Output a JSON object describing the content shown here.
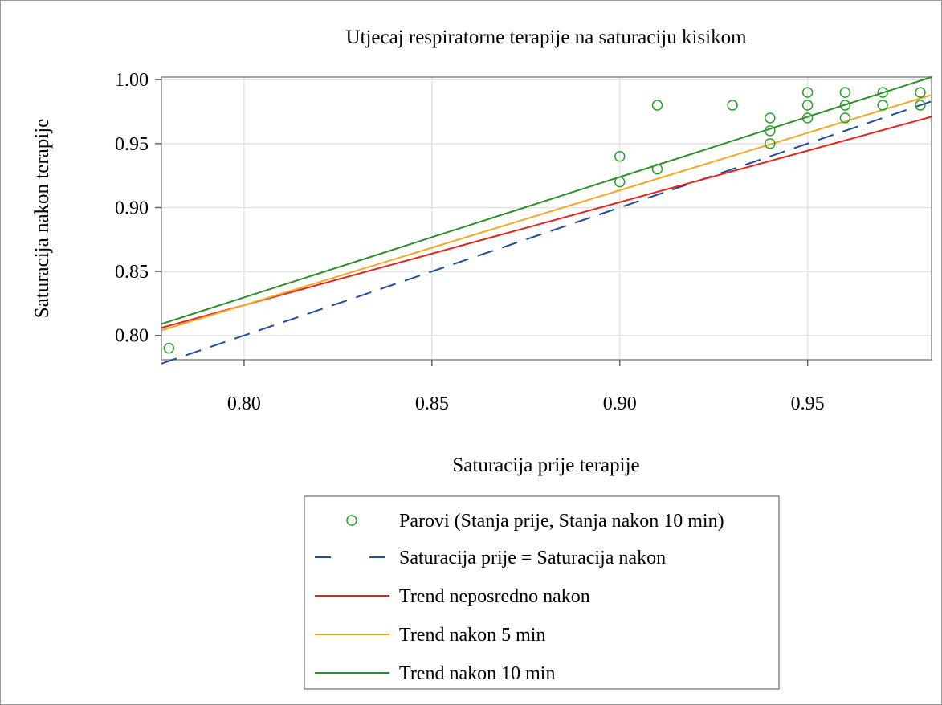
{
  "chart_data": {
    "type": "scatter",
    "title": "Utjecaj respiratorne terapije na saturaciju kisikom",
    "xlabel": "Saturacija prije terapije",
    "ylabel": "Saturacija nakon terapije",
    "xlim": [
      0.778,
      0.983
    ],
    "ylim": [
      0.781,
      1.002
    ],
    "xticks": [
      0.8,
      0.85,
      0.9,
      0.95
    ],
    "yticks": [
      0.8,
      0.85,
      0.9,
      0.95,
      1.0
    ],
    "xtick_labels": [
      "0.80",
      "0.85",
      "0.90",
      "0.95"
    ],
    "ytick_labels": [
      "0.80",
      "0.85",
      "0.90",
      "0.95",
      "1.00"
    ],
    "grid": true,
    "legend_position": "bottom",
    "scatter": {
      "name": "Parovi (Stanja prije,  Stanja nakon 10 min)",
      "color": "#2e9e2e",
      "points": [
        [
          0.78,
          0.79
        ],
        [
          0.9,
          0.94
        ],
        [
          0.9,
          0.92
        ],
        [
          0.91,
          0.98
        ],
        [
          0.91,
          0.93
        ],
        [
          0.93,
          0.98
        ],
        [
          0.94,
          0.97
        ],
        [
          0.94,
          0.96
        ],
        [
          0.94,
          0.95
        ],
        [
          0.95,
          0.99
        ],
        [
          0.95,
          0.98
        ],
        [
          0.95,
          0.97
        ],
        [
          0.96,
          0.99
        ],
        [
          0.96,
          0.98
        ],
        [
          0.96,
          0.97
        ],
        [
          0.97,
          0.99
        ],
        [
          0.97,
          0.98
        ],
        [
          0.98,
          0.99
        ],
        [
          0.98,
          0.98
        ]
      ]
    },
    "lines": [
      {
        "name": "Saturacija prije = Saturacija nakon",
        "color": "#1f4e9e",
        "dashed": true,
        "points": [
          [
            0.778,
            0.778
          ],
          [
            0.983,
            0.983
          ]
        ]
      },
      {
        "name": "Trend neposredno nakon",
        "color": "#e8231c",
        "dashed": false,
        "points": [
          [
            0.778,
            0.806
          ],
          [
            0.983,
            0.971
          ]
        ]
      },
      {
        "name": "Trend nakon 5 min",
        "color": "#f5a623",
        "dashed": false,
        "points": [
          [
            0.778,
            0.804
          ],
          [
            0.983,
            0.988
          ]
        ]
      },
      {
        "name": "Trend nakon 10 min",
        "color": "#2a8f2a",
        "dashed": false,
        "points": [
          [
            0.778,
            0.809
          ],
          [
            0.983,
            1.002
          ]
        ]
      }
    ]
  }
}
